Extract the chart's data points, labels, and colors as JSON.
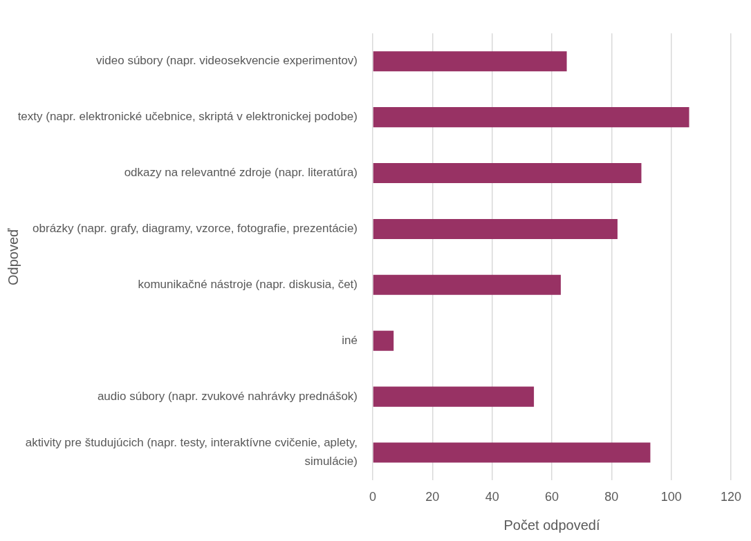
{
  "chart_data": {
    "type": "bar",
    "orientation": "horizontal",
    "xlabel": "Počet odpovedí",
    "ylabel": "Odpoveď",
    "categories": [
      "video súbory (napr. videosekvencie experimentov)",
      "texty (napr. elektronické učebnice, skriptá v elektronickej podobe)",
      "odkazy na relevantné zdroje (napr. literatúra)",
      "obrázky (napr. grafy, diagramy, vzorce, fotografie, prezentácie)",
      "komunikačné nástroje (napr. diskusia, čet)",
      "iné",
      "audio súbory (napr. zvukové nahrávky prednášok)",
      "aktivity pre študujúcich (napr. testy, interaktívne cvičenie, aplety, simulácie)"
    ],
    "values": [
      65,
      106,
      90,
      82,
      63,
      7,
      54,
      93
    ],
    "color": "#983264",
    "xlim": [
      0,
      120
    ],
    "xticks": [
      0,
      20,
      40,
      60,
      80,
      100,
      120
    ],
    "grid": "x",
    "legend": false
  }
}
